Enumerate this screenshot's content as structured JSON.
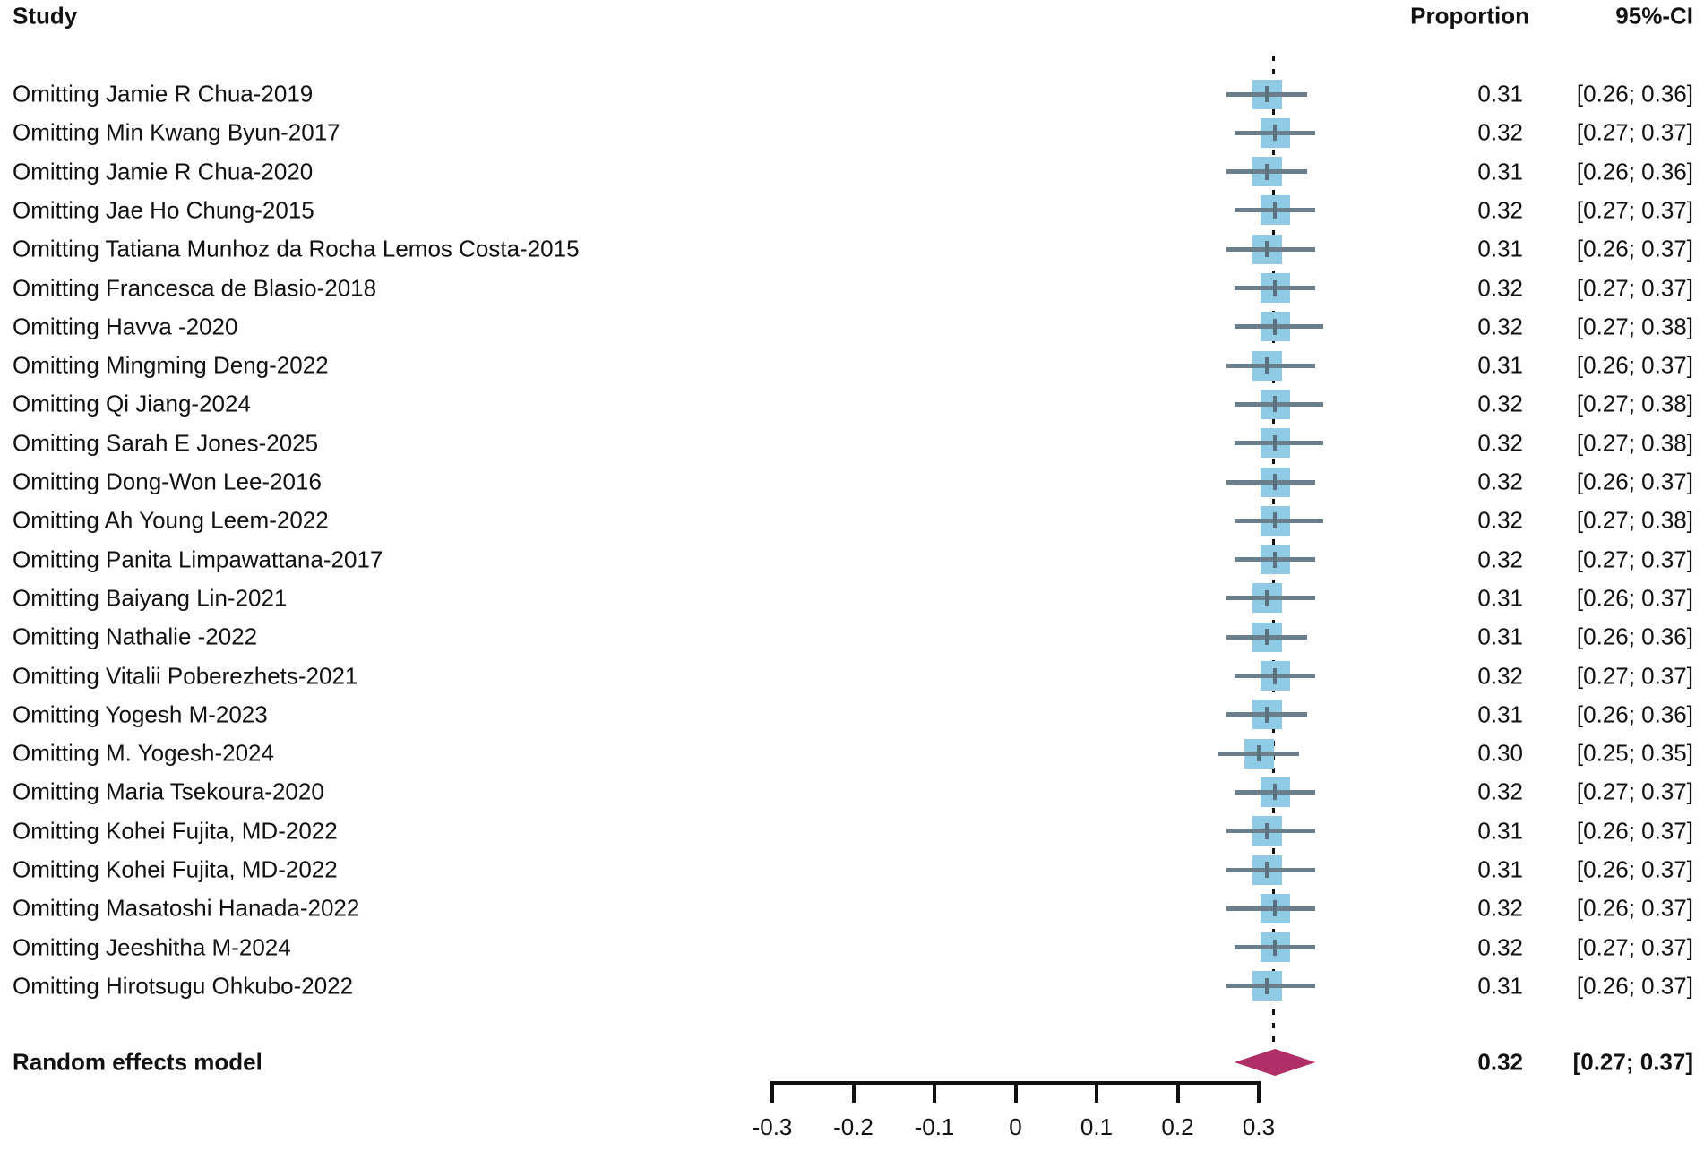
{
  "headers": {
    "study": "Study",
    "proportion": "Proportion",
    "ci": "95%-CI"
  },
  "chart_data": {
    "type": "scatter",
    "variant": "forest-plot-leave-one-out",
    "title": "",
    "columns": [
      "Study",
      "Proportion",
      "95%-CI"
    ],
    "x_axis": {
      "ticks": [
        -0.3,
        -0.2,
        -0.1,
        0,
        0.1,
        0.2,
        0.3
      ],
      "tick_labels": [
        "-0.3",
        "-0.2",
        "-0.1",
        "0",
        "0.1",
        "0.2",
        "0.3"
      ],
      "range": [
        -0.3,
        0.3
      ],
      "grid": false
    },
    "reference_line_x": 0.32,
    "studies": [
      {
        "label": "Omitting Jamie R Chua-2019",
        "est": 0.31,
        "lower": 0.26,
        "upper": 0.36,
        "proportion": "0.31",
        "ci": "[0.26; 0.36]"
      },
      {
        "label": "Omitting Min Kwang Byun-2017",
        "est": 0.32,
        "lower": 0.27,
        "upper": 0.37,
        "proportion": "0.32",
        "ci": "[0.27; 0.37]"
      },
      {
        "label": "Omitting Jamie R Chua-2020",
        "est": 0.31,
        "lower": 0.26,
        "upper": 0.36,
        "proportion": "0.31",
        "ci": "[0.26; 0.36]"
      },
      {
        "label": "Omitting Jae Ho Chung-2015",
        "est": 0.32,
        "lower": 0.27,
        "upper": 0.37,
        "proportion": "0.32",
        "ci": "[0.27; 0.37]"
      },
      {
        "label": "Omitting Tatiana Munhoz da Rocha Lemos Costa-2015",
        "est": 0.31,
        "lower": 0.26,
        "upper": 0.37,
        "proportion": "0.31",
        "ci": "[0.26; 0.37]"
      },
      {
        "label": "Omitting Francesca de Blasio-2018",
        "est": 0.32,
        "lower": 0.27,
        "upper": 0.37,
        "proportion": "0.32",
        "ci": "[0.27; 0.37]"
      },
      {
        "label": "Omitting Havva -2020",
        "est": 0.32,
        "lower": 0.27,
        "upper": 0.38,
        "proportion": "0.32",
        "ci": "[0.27; 0.38]"
      },
      {
        "label": "Omitting Mingming Deng-2022",
        "est": 0.31,
        "lower": 0.26,
        "upper": 0.37,
        "proportion": "0.31",
        "ci": "[0.26; 0.37]"
      },
      {
        "label": "Omitting Qi Jiang-2024",
        "est": 0.32,
        "lower": 0.27,
        "upper": 0.38,
        "proportion": "0.32",
        "ci": "[0.27; 0.38]"
      },
      {
        "label": "Omitting Sarah E Jones-2025",
        "est": 0.32,
        "lower": 0.27,
        "upper": 0.38,
        "proportion": "0.32",
        "ci": "[0.27; 0.38]"
      },
      {
        "label": "Omitting Dong-Won Lee-2016",
        "est": 0.32,
        "lower": 0.26,
        "upper": 0.37,
        "proportion": "0.32",
        "ci": "[0.26; 0.37]"
      },
      {
        "label": "Omitting Ah Young Leem-2022",
        "est": 0.32,
        "lower": 0.27,
        "upper": 0.38,
        "proportion": "0.32",
        "ci": "[0.27; 0.38]"
      },
      {
        "label": "Omitting Panita Limpawattana-2017",
        "est": 0.32,
        "lower": 0.27,
        "upper": 0.37,
        "proportion": "0.32",
        "ci": "[0.27; 0.37]"
      },
      {
        "label": "Omitting Baiyang Lin-2021",
        "est": 0.31,
        "lower": 0.26,
        "upper": 0.37,
        "proportion": "0.31",
        "ci": "[0.26; 0.37]"
      },
      {
        "label": "Omitting Nathalie -2022",
        "est": 0.31,
        "lower": 0.26,
        "upper": 0.36,
        "proportion": "0.31",
        "ci": "[0.26; 0.36]"
      },
      {
        "label": "Omitting Vitalii Poberezhets-2021",
        "est": 0.32,
        "lower": 0.27,
        "upper": 0.37,
        "proportion": "0.32",
        "ci": "[0.27; 0.37]"
      },
      {
        "label": "Omitting Yogesh M-2023",
        "est": 0.31,
        "lower": 0.26,
        "upper": 0.36,
        "proportion": "0.31",
        "ci": "[0.26; 0.36]"
      },
      {
        "label": "Omitting M. Yogesh-2024",
        "est": 0.3,
        "lower": 0.25,
        "upper": 0.35,
        "proportion": "0.30",
        "ci": "[0.25; 0.35]"
      },
      {
        "label": "Omitting Maria Tsekoura-2020",
        "est": 0.32,
        "lower": 0.27,
        "upper": 0.37,
        "proportion": "0.32",
        "ci": "[0.27; 0.37]"
      },
      {
        "label": "Omitting Kohei Fujita, MD-2022",
        "est": 0.31,
        "lower": 0.26,
        "upper": 0.37,
        "proportion": "0.31",
        "ci": "[0.26; 0.37]"
      },
      {
        "label": "Omitting Kohei Fujita, MD-2022",
        "est": 0.31,
        "lower": 0.26,
        "upper": 0.37,
        "proportion": "0.31",
        "ci": "[0.26; 0.37]"
      },
      {
        "label": "Omitting Masatoshi Hanada-2022",
        "est": 0.32,
        "lower": 0.26,
        "upper": 0.37,
        "proportion": "0.32",
        "ci": "[0.26; 0.37]"
      },
      {
        "label": "Omitting Jeeshitha M-2024",
        "est": 0.32,
        "lower": 0.27,
        "upper": 0.37,
        "proportion": "0.32",
        "ci": "[0.27; 0.37]"
      },
      {
        "label": "Omitting Hirotsugu Ohkubo-2022",
        "est": 0.31,
        "lower": 0.26,
        "upper": 0.37,
        "proportion": "0.31",
        "ci": "[0.26; 0.37]"
      }
    ],
    "summary": {
      "label": "Random effects model",
      "est": 0.32,
      "lower": 0.27,
      "upper": 0.37,
      "proportion": "0.32",
      "ci": "[0.27; 0.37]"
    },
    "colors": {
      "square": "#8FCBE4",
      "ci_line": "#6B7E8C",
      "estimate_tick": "#5A7280",
      "diamond": "#B02F68",
      "reference_line": "#111111",
      "axis": "#111111",
      "text": "#111111"
    },
    "legend": null
  }
}
